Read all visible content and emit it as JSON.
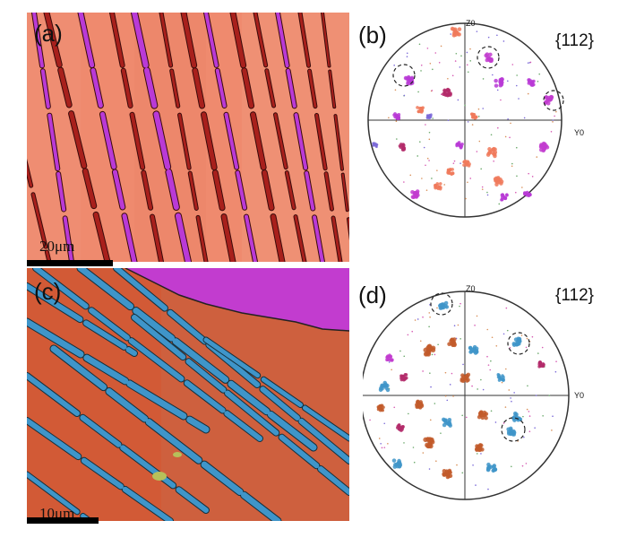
{
  "panels": {
    "a": {
      "label": "(a)",
      "scale_bar_text": "20μm",
      "colors": {
        "matrix": "#ef8a6e",
        "twin_dark": "#a8201c",
        "twin_purple": "#b93ad6"
      }
    },
    "b": {
      "label": "(b)",
      "plane": "{112}",
      "axis_top": "Z0",
      "axis_right": "Y0"
    },
    "c": {
      "label": "(c)",
      "scale_bar_text": "10μm",
      "colors": {
        "matrix": "#d25a36",
        "twin_blue": "#3f95c9",
        "top_region": "#c23ccf"
      }
    },
    "d": {
      "label": "(d)",
      "plane": "{112}",
      "axis_top": "Z0",
      "axis_right": "Y0"
    }
  }
}
